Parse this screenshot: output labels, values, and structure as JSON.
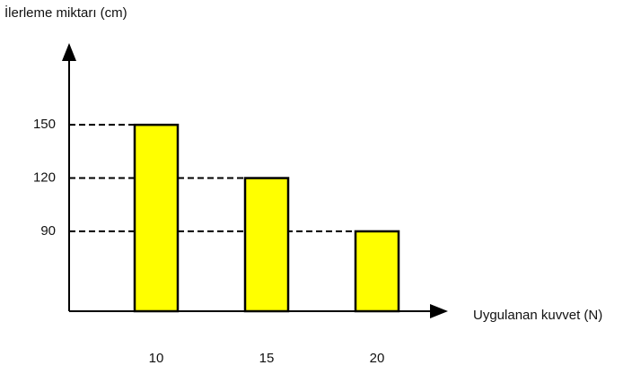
{
  "chart_data": {
    "type": "bar",
    "title": "İlerleme miktarı (cm)",
    "x_label": "Uygulanan kuvvet (N)",
    "categories": [
      "10",
      "15",
      "20"
    ],
    "values": [
      150,
      120,
      90
    ],
    "color": "#ffff00",
    "ylim": [
      45,
      190
    ],
    "yticks": [
      90,
      120,
      150
    ]
  }
}
